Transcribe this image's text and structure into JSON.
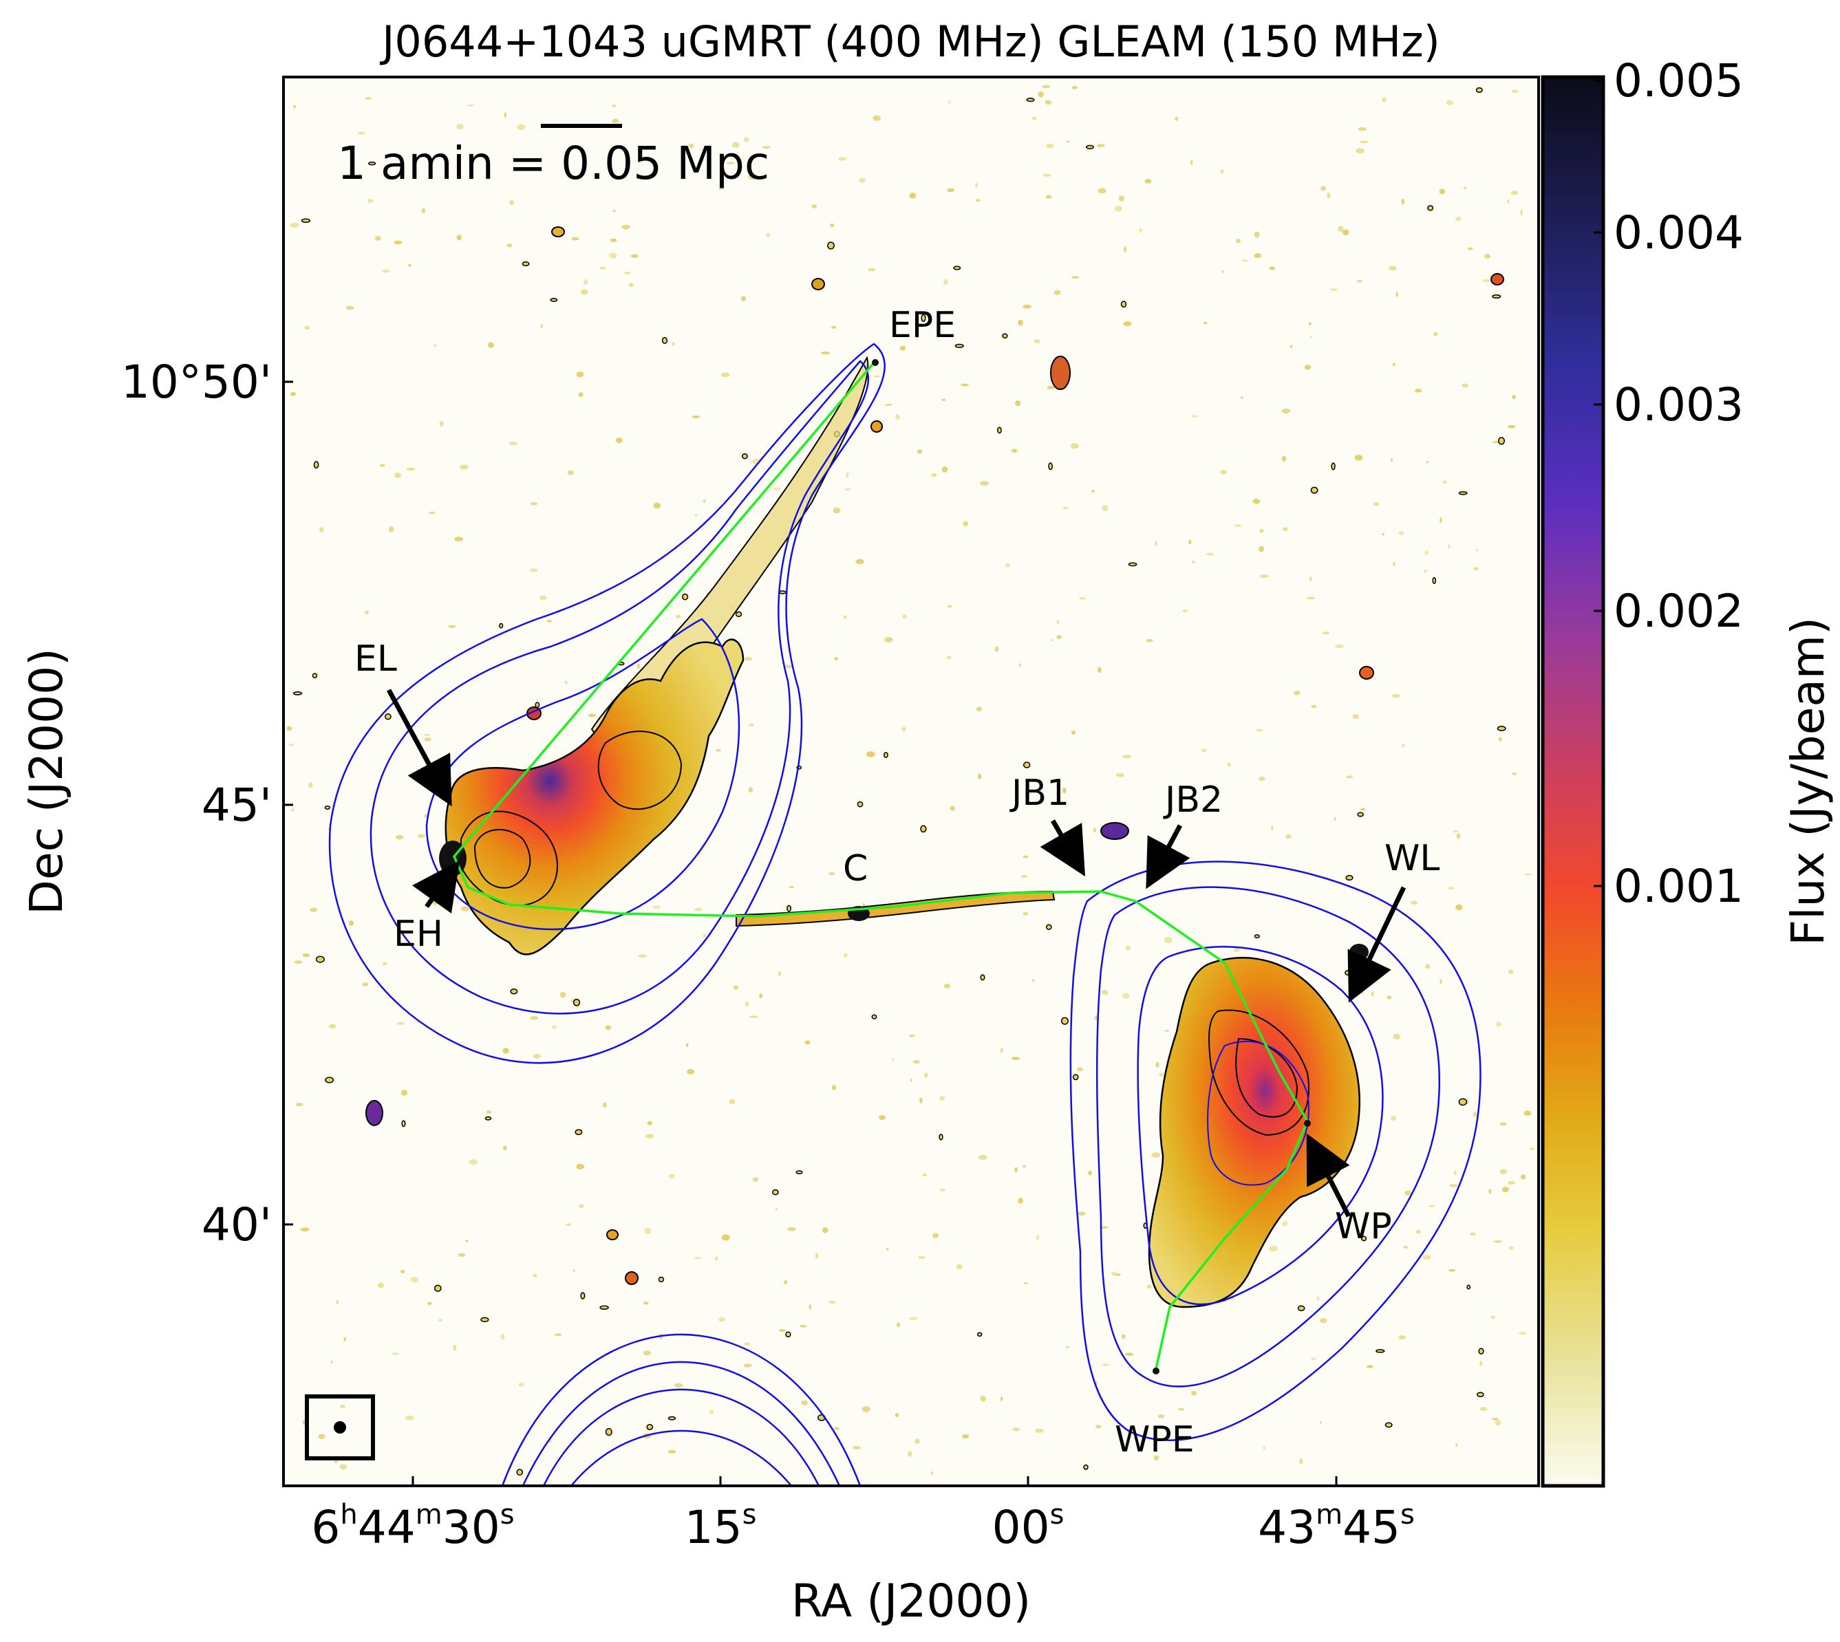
{
  "title": "J0644+1043 uGMRT (400 MHz) GLEAM (150 MHz)",
  "scale_bar_label": "1 amin = 0.05 Mpc",
  "x_axis": {
    "label": "RA (J2000)",
    "ticks": [
      {
        "h": "6",
        "hs": "h",
        "m": "44",
        "ms": "m",
        "s": "30",
        "ss": "s"
      },
      {
        "s": "15",
        "ss": "s"
      },
      {
        "s": "00",
        "ss": "s"
      },
      {
        "m": "43",
        "ms": "m",
        "s": "45",
        "ss": "s"
      }
    ]
  },
  "y_axis": {
    "label": "Dec (J2000)",
    "ticks": [
      "10°50'",
      "45'",
      "40'"
    ]
  },
  "colorbar": {
    "label": "Flux (Jy/beam)",
    "ticks": [
      "0.005",
      "0.004",
      "0.003",
      "0.002",
      "0.001"
    ],
    "colors": [
      "#0b0b19",
      "#2a2a7a",
      "#5a2ec0",
      "#9a3a9a",
      "#d0405a",
      "#f24a2a",
      "#e87a10",
      "#e2aa18",
      "#e6cc40",
      "#e8e29a",
      "#fbfbee"
    ]
  },
  "annotations": [
    "EPE",
    "EL",
    "EH",
    "C",
    "JB1",
    "JB2",
    "WL",
    "WP",
    "WPE"
  ],
  "colors": {
    "contour_blue": "#1010e6",
    "path_green": "#22ee22",
    "frame": "#000000"
  }
}
